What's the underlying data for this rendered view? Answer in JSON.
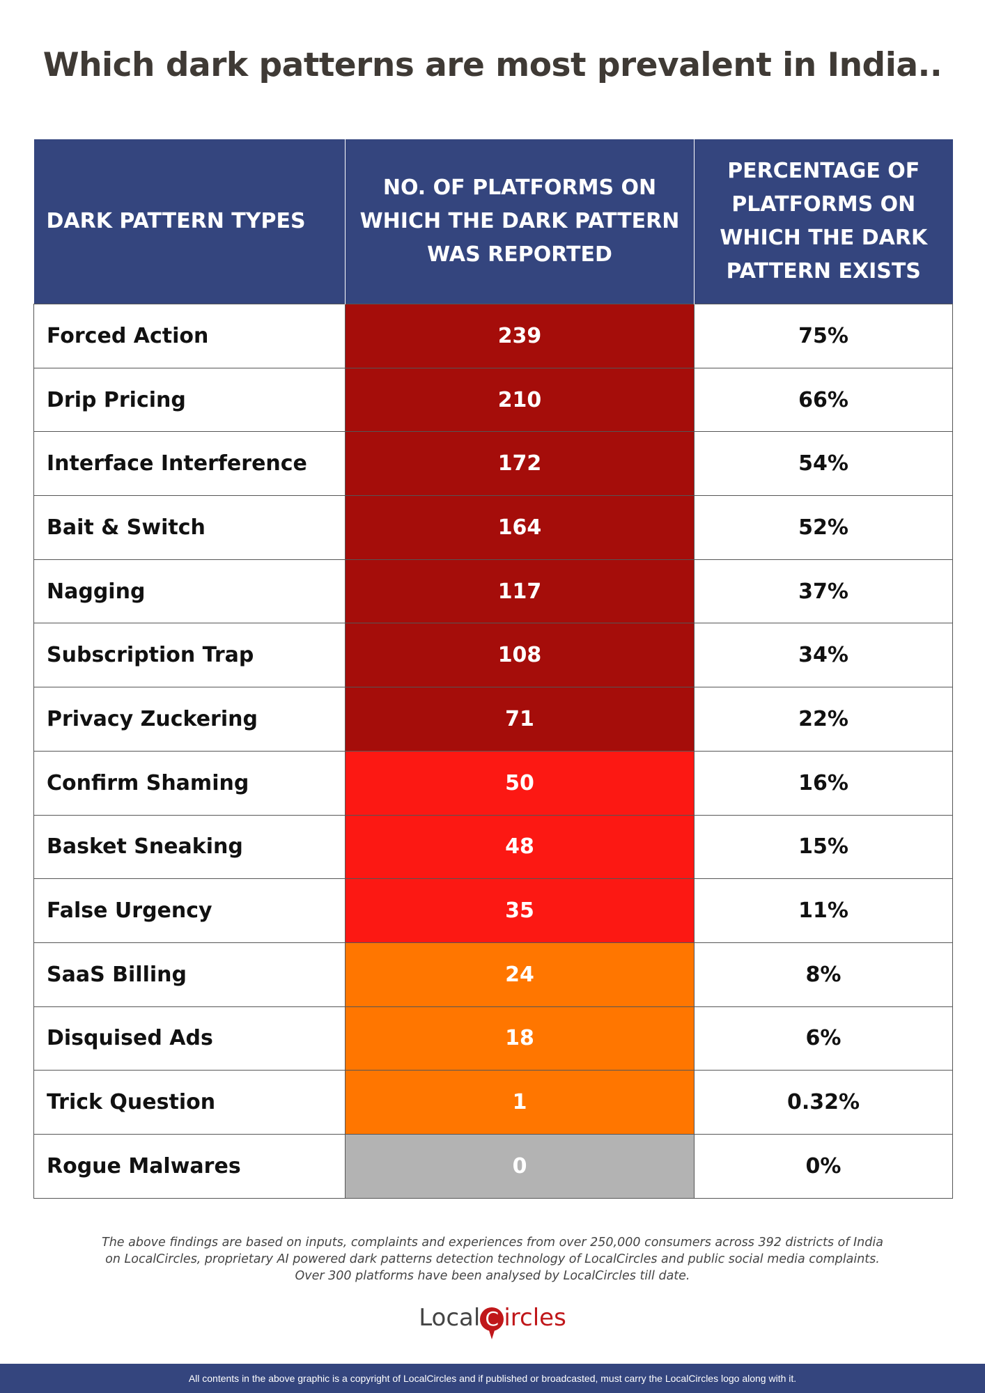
{
  "title": "Which dark patterns are most prevalent in India..",
  "table": {
    "headers": [
      "DARK PATTERN TYPES",
      "NO. OF PLATFORMS ON WHICH THE DARK PATTERN WAS REPORTED",
      "PERCENTAGE OF PLATFORMS ON WHICH THE DARK PATTERN EXISTS"
    ],
    "rows": [
      {
        "type": "Forced Action",
        "count": "239",
        "percent": "75%",
        "color": "#a50d0a"
      },
      {
        "type": "Drip Pricing",
        "count": "210",
        "percent": "66%",
        "color": "#a50d0a"
      },
      {
        "type": "Interface Interference",
        "count": "172",
        "percent": "54%",
        "color": "#a50d0a"
      },
      {
        "type": "Bait & Switch",
        "count": "164",
        "percent": "52%",
        "color": "#a50d0a"
      },
      {
        "type": "Nagging",
        "count": "117",
        "percent": "37%",
        "color": "#a50d0a"
      },
      {
        "type": "Subscription Trap",
        "count": "108",
        "percent": "34%",
        "color": "#a50d0a"
      },
      {
        "type": "Privacy Zuckering",
        "count": "71",
        "percent": "22%",
        "color": "#a50d0a"
      },
      {
        "type": "Confirm Shaming",
        "count": "50",
        "percent": "16%",
        "color": "#fc1813"
      },
      {
        "type": "Basket Sneaking",
        "count": "48",
        "percent": "15%",
        "color": "#fc1813"
      },
      {
        "type": "False Urgency",
        "count": "35",
        "percent": "11%",
        "color": "#fc1813"
      },
      {
        "type": "SaaS Billing",
        "count": "24",
        "percent": "8%",
        "color": "#ff7600"
      },
      {
        "type": "Disquised Ads",
        "count": "18",
        "percent": "6%",
        "color": "#ff7600"
      },
      {
        "type": "Trick Question",
        "count": "1",
        "percent": "0.32%",
        "color": "#ff7600"
      },
      {
        "type": "Rogue Malwares",
        "count": "0",
        "percent": "0%",
        "color": "#b3b3b3"
      }
    ]
  },
  "note": [
    "The above findings are based on inputs, complaints and experiences from over 250,000 consumers across 392 districts of India",
    "on LocalCircles, proprietary AI powered dark patterns detection technology of LocalCircles and public social media complaints.",
    "Over 300 platforms have been analysed by LocalCircles till date."
  ],
  "logo": {
    "text": "LocalCircles",
    "part1": "Local",
    "part2": "C",
    "part3": "ircles"
  },
  "footer": "All contents in the above graphic is a copyright of LocalCircles and if published or broadcasted, must carry the LocalCircles logo along with it.",
  "colors": {
    "header": "#34457e",
    "high": "#a50d0a",
    "medium": "#fc1813",
    "low": "#ff7600",
    "none": "#b3b3b3"
  }
}
